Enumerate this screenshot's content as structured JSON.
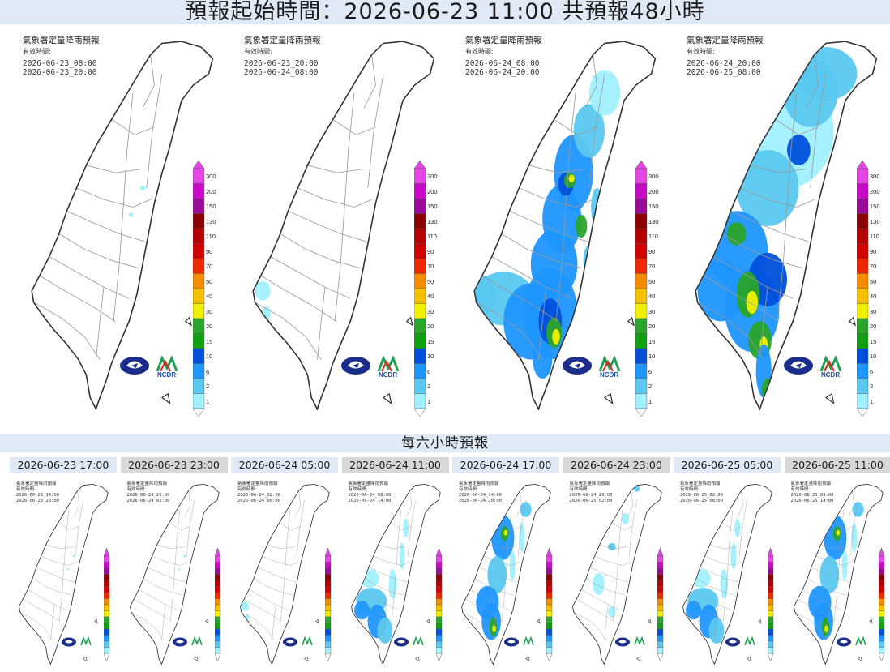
{
  "header": {
    "title": "預報起始時間：2026-06-23 11:00  共預報48小時"
  },
  "panel_title": "氣象署定量降雨預報",
  "valid_label": "有效時間:",
  "large_panels": [
    {
      "start": "2026-06-23_08:00",
      "end": "2026-06-23_20:00",
      "rain_level": "none"
    },
    {
      "start": "2026-06-23_20:00",
      "end": "2026-06-24_08:00",
      "rain_level": "trace"
    },
    {
      "start": "2026-06-24_08:00",
      "end": "2026-06-24_20:00",
      "rain_level": "heavy-south-central"
    },
    {
      "start": "2026-06-24_20:00",
      "end": "2026-06-25_08:00",
      "rain_level": "heavy-southwest"
    }
  ],
  "colorbar": {
    "ticks": [
      "300",
      "200",
      "150",
      "130",
      "110",
      "90",
      "70",
      "50",
      "40",
      "30",
      "20",
      "15",
      "10",
      "6",
      "2",
      "1"
    ],
    "colors": [
      "#e645e6",
      "#c90bc9",
      "#9b0b9b",
      "#8b0000",
      "#b40000",
      "#d40000",
      "#f02800",
      "#f58c00",
      "#f5c000",
      "#f0f000",
      "#2aa42a",
      "#11a011",
      "#0050dc",
      "#1e96ff",
      "#5ac8f0",
      "#a0f0ff"
    ]
  },
  "logos": {
    "left": "cwa-logo-icon",
    "right": "ncdr-logo-icon",
    "right_text": "NCDR"
  },
  "section_title": "每六小時預報",
  "small_panels": [
    {
      "tab": "2026-06-23 17:00",
      "start": "2026-06-23_14:00",
      "end": "2026-06-23_20:00",
      "rain_level": "none"
    },
    {
      "tab": "2026-06-23 23:00",
      "start": "2026-06-23_20:00",
      "end": "2026-06-24_02:00",
      "rain_level": "none"
    },
    {
      "tab": "2026-06-24 05:00",
      "start": "2026-06-24_02:00",
      "end": "2026-06-24_08:00",
      "rain_level": "trace"
    },
    {
      "tab": "2026-06-24 11:00",
      "start": "2026-06-24_08:00",
      "end": "2026-06-24_14:00",
      "rain_level": "moderate"
    },
    {
      "tab": "2026-06-24 17:00",
      "start": "2026-06-24_14:00",
      "end": "2026-06-24_20:00",
      "rain_level": "heavy"
    },
    {
      "tab": "2026-06-24 23:00",
      "start": "2026-06-24_20:00",
      "end": "2026-06-25_02:00",
      "rain_level": "light"
    },
    {
      "tab": "2026-06-25 05:00",
      "start": "2026-06-25_02:00",
      "end": "2026-06-25_08:00",
      "rain_level": "moderate"
    },
    {
      "tab": "2026-06-25 11:00",
      "start": "2026-06-25_08:00",
      "end": "2026-06-25_14:00",
      "rain_level": "heavy"
    }
  ]
}
